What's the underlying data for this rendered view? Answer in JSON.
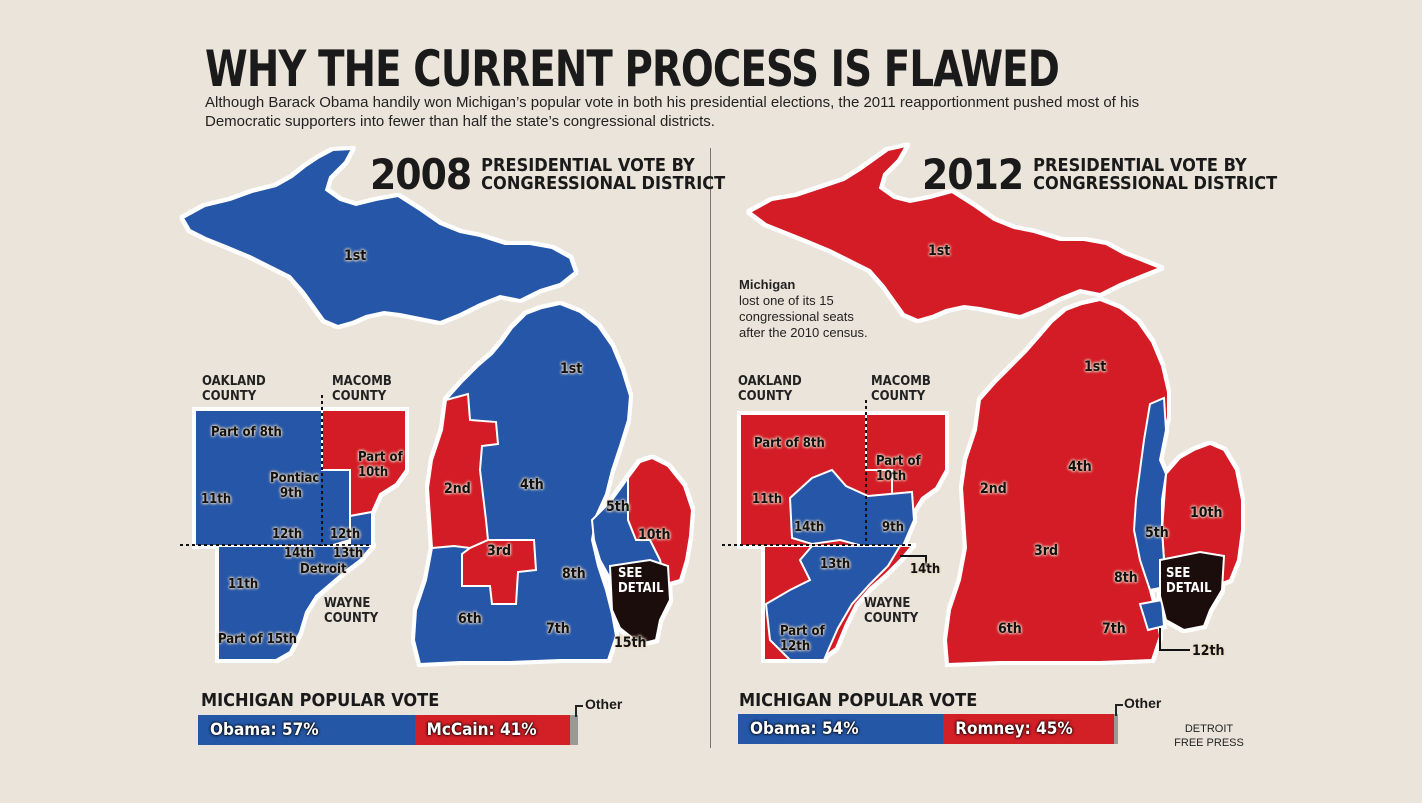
{
  "title": "WHY THE CURRENT PROCESS IS FLAWED",
  "subtitle": "Although Barack Obama handily won Michigan’s popular vote in both his presidential elections, the 2011 reapportionment pushed most of his Democratic supporters into fewer than half the state’s congressional districts.",
  "colors": {
    "democrat": "#2557a7",
    "republican": "#d31f26",
    "detail": "#1a0f0b",
    "background": "#ebe4da"
  },
  "panels": [
    {
      "year": "2008",
      "heading_line1": "PRESIDENTIAL VOTE BY",
      "heading_line2": "CONGRESSIONAL DISTRICT",
      "counties": {
        "oakland": "OAKLAND COUNTY",
        "macomb": "MACOMB COUNTY",
        "wayne": "WAYNE COUNTY"
      },
      "labels": {
        "up_1st": "1st",
        "lp_1st": "1st",
        "d2": "2nd",
        "d3": "3rd",
        "d4": "4th",
        "d5": "5th",
        "d6": "6th",
        "d7": "7th",
        "d8": "8th",
        "d10": "10th",
        "d15": "15th",
        "part8": "Part of 8th",
        "part10": "Part of 10th",
        "d11a": "11th",
        "pontiac": "Pontiac",
        "d9": "9th",
        "d12": "12th",
        "d12b": "12th",
        "d14": "14th",
        "d13": "13th",
        "detroit": "Detroit",
        "d11b": "11th",
        "part15": "Part of 15th",
        "see_detail": "SEE DETAIL"
      },
      "popular_vote": {
        "heading": "MICHIGAN POPULAR VOTE",
        "dem_label": "Obama: 57%",
        "dem_share": 57,
        "rep_label": "McCain: 41%",
        "rep_share": 41,
        "other_label": "Other",
        "other_share": 2
      }
    },
    {
      "year": "2012",
      "heading_line1": "PRESIDENTIAL VOTE BY",
      "heading_line2": "CONGRESSIONAL DISTRICT",
      "note_bold": "Michigan",
      "note_text": "lost one of its 15 congressional seats after the 2010 census.",
      "counties": {
        "oakland": "OAKLAND COUNTY",
        "macomb": "MACOMB COUNTY",
        "wayne": "WAYNE COUNTY"
      },
      "labels": {
        "up_1st": "1st",
        "lp_1st": "1st",
        "d2": "2nd",
        "d3": "3rd",
        "d4": "4th",
        "d5": "5th",
        "d6": "6th",
        "d7": "7th",
        "d8": "8th",
        "d10": "10th",
        "d12": "12th",
        "part8": "Part of 8th",
        "part10": "Part of 10th",
        "d11": "11th",
        "d14": "14th",
        "d9": "9th",
        "d13": "13th",
        "d14_out": "14th",
        "part12": "Part of 12th",
        "see_detail": "SEE DETAIL"
      },
      "popular_vote": {
        "heading": "MICHIGAN POPULAR VOTE",
        "dem_label": "Obama: 54%",
        "dem_share": 54,
        "rep_label": "Romney: 45%",
        "rep_share": 45,
        "other_label": "Other",
        "other_share": 1
      }
    }
  ],
  "credit": "DETROIT FREE PRESS"
}
